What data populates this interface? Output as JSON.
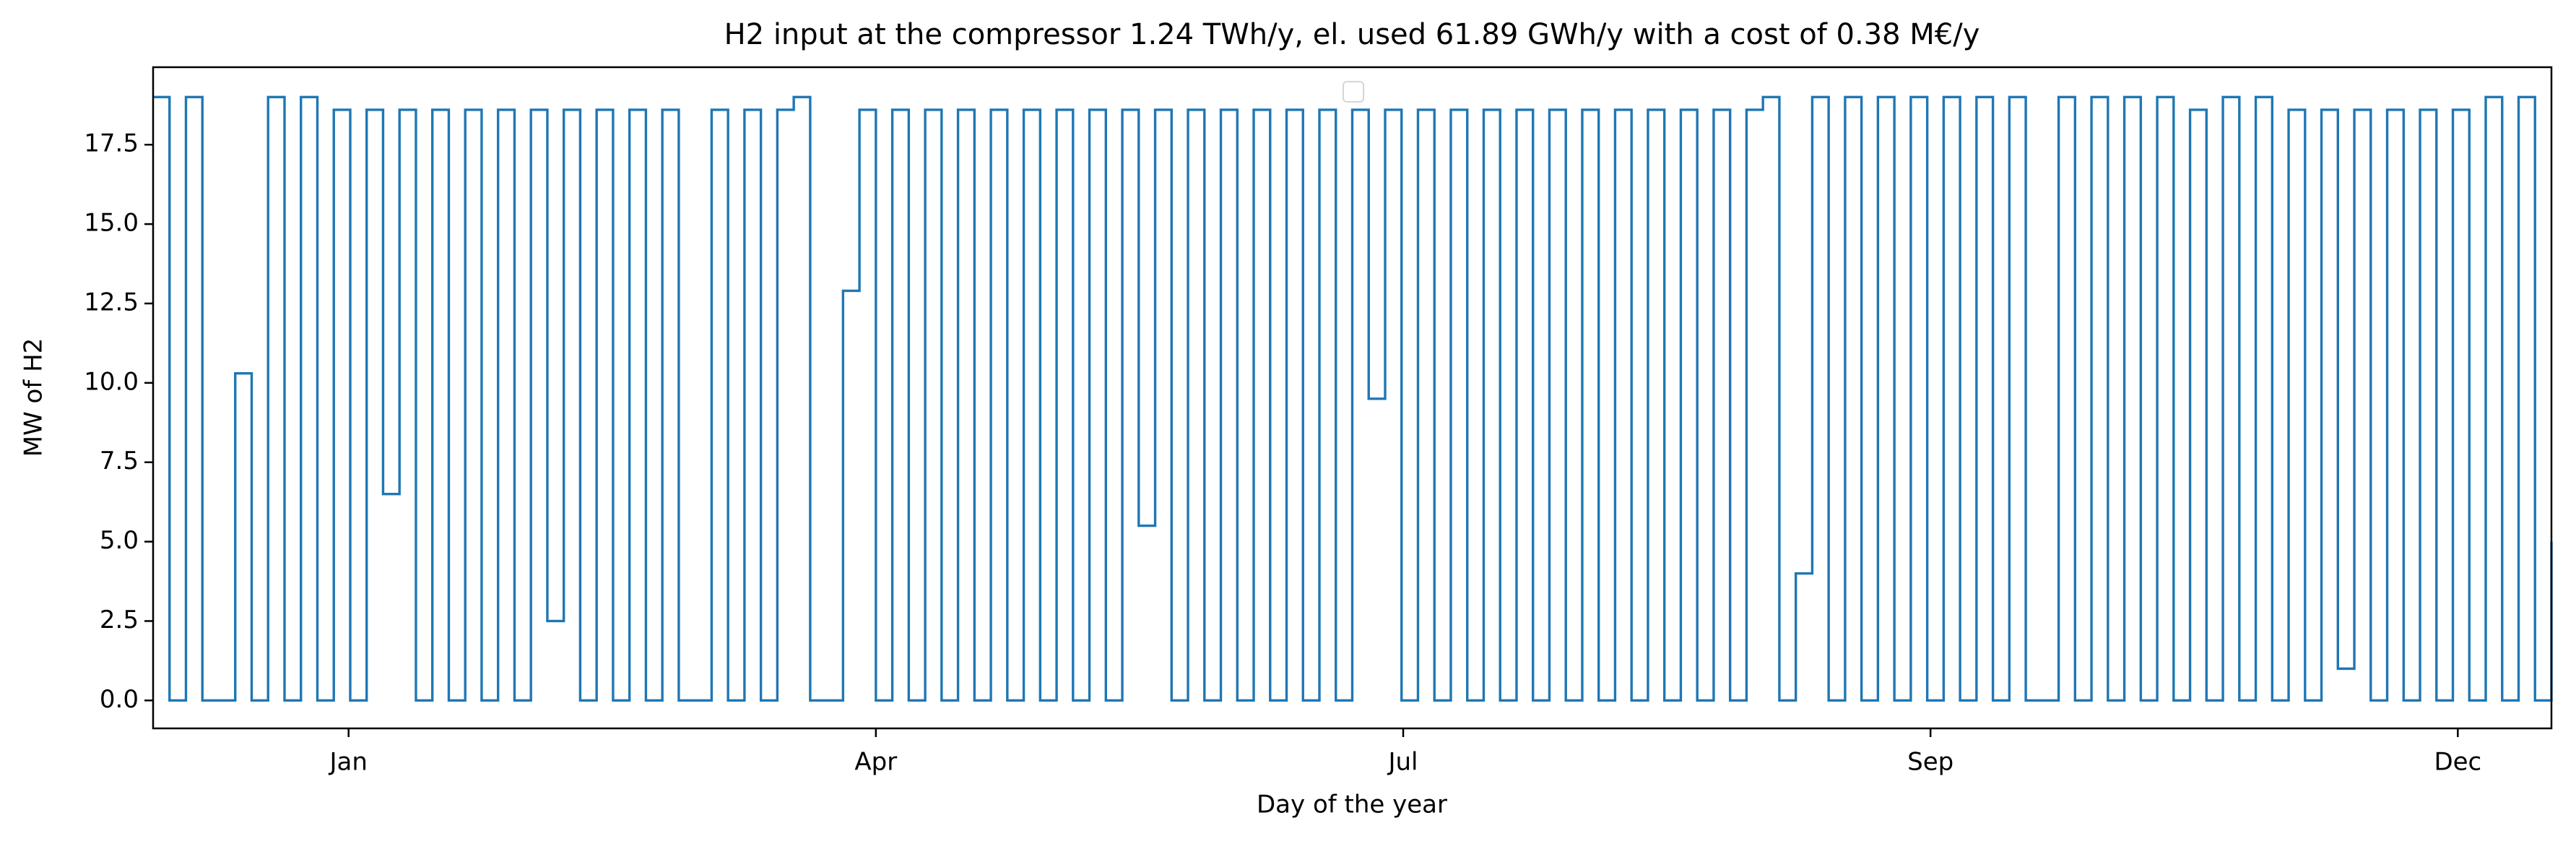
{
  "chart_data": {
    "type": "line",
    "title": "H2 input at the compressor 1.24 TWh/y, el. used 61.89 GWh/y with a cost of 0.38 M€/y",
    "xlabel": "Day of the year",
    "ylabel": "MW of H2",
    "xlim": [
      0,
      8760
    ],
    "xticks": [
      {
        "value": 714,
        "label": "Jan"
      },
      {
        "value": 2640,
        "label": "Apr"
      },
      {
        "value": 4566,
        "label": "Jul"
      },
      {
        "value": 6492,
        "label": "Sep"
      },
      {
        "value": 8418,
        "label": "Dec"
      }
    ],
    "ylim": [
      -0.88,
      19.94
    ],
    "yticks": [
      {
        "value": 0,
        "label": "0.0"
      },
      {
        "value": 2.5,
        "label": "2.5"
      },
      {
        "value": 5,
        "label": "5.0"
      },
      {
        "value": 7.5,
        "label": "7.5"
      },
      {
        "value": 10,
        "label": "10.0"
      },
      {
        "value": 12.5,
        "label": "12.5"
      },
      {
        "value": 15,
        "label": "15.0"
      },
      {
        "value": 17.5,
        "label": "17.5"
      }
    ],
    "x": [
      0,
      60,
      120,
      180,
      240,
      300,
      360,
      420,
      480,
      540,
      600,
      660,
      720,
      780,
      840,
      900,
      960,
      1020,
      1080,
      1140,
      1200,
      1260,
      1320,
      1380,
      1440,
      1500,
      1560,
      1620,
      1680,
      1740,
      1800,
      1860,
      1920,
      1980,
      2040,
      2100,
      2160,
      2220,
      2280,
      2340,
      2400,
      2460,
      2520,
      2580,
      2640,
      2700,
      2760,
      2820,
      2880,
      2940,
      3000,
      3060,
      3120,
      3180,
      3240,
      3300,
      3360,
      3420,
      3480,
      3540,
      3600,
      3660,
      3720,
      3780,
      3840,
      3900,
      3960,
      4020,
      4080,
      4140,
      4200,
      4260,
      4320,
      4380,
      4440,
      4500,
      4560,
      4620,
      4680,
      4740,
      4800,
      4860,
      4920,
      4980,
      5040,
      5100,
      5160,
      5220,
      5280,
      5340,
      5400,
      5460,
      5520,
      5580,
      5640,
      5700,
      5760,
      5820,
      5880,
      5940,
      6000,
      6060,
      6120,
      6180,
      6240,
      6300,
      6360,
      6420,
      6480,
      6540,
      6600,
      6660,
      6720,
      6780,
      6840,
      6900,
      6960,
      7020,
      7080,
      7140,
      7200,
      7260,
      7320,
      7380,
      7440,
      7500,
      7560,
      7620,
      7680,
      7740,
      7800,
      7860,
      7920,
      7980,
      8040,
      8100,
      8160,
      8220,
      8280,
      8340,
      8400,
      8460,
      8520,
      8580,
      8640,
      8700,
      8760
    ],
    "series": [
      {
        "color": "#1f77b4",
        "values": [
          19,
          0,
          19,
          0,
          0,
          10.3,
          0,
          19,
          0,
          19,
          0,
          18.6,
          0,
          18.6,
          6.5,
          18.6,
          0,
          18.6,
          0,
          18.6,
          0,
          18.6,
          0,
          18.6,
          2.5,
          18.6,
          0,
          18.6,
          0,
          18.6,
          0,
          18.6,
          0,
          0,
          18.6,
          0,
          18.6,
          0,
          18.6,
          19,
          0,
          0,
          12.9,
          18.6,
          0,
          18.6,
          0,
          18.6,
          0,
          18.6,
          0,
          18.6,
          0,
          18.6,
          0,
          18.6,
          0,
          18.6,
          0,
          18.6,
          5.5,
          18.6,
          0,
          18.6,
          0,
          18.6,
          0,
          18.6,
          0,
          18.6,
          0,
          18.6,
          0,
          18.6,
          9.5,
          18.6,
          0,
          18.6,
          0,
          18.6,
          0,
          18.6,
          0,
          18.6,
          0,
          18.6,
          0,
          18.6,
          0,
          18.6,
          0,
          18.6,
          0,
          18.6,
          0,
          18.6,
          0,
          18.6,
          19,
          0,
          4,
          19,
          0,
          19,
          0,
          19,
          0,
          19,
          0,
          19,
          0,
          19,
          0,
          19,
          0,
          0,
          19,
          0,
          19,
          0,
          19,
          0,
          19,
          0,
          18.6,
          0,
          19,
          0,
          19,
          0,
          18.6,
          0,
          18.6,
          1,
          18.6,
          0,
          18.6,
          0,
          18.6,
          0,
          18.6,
          0,
          19,
          0,
          19,
          0,
          5
        ]
      }
    ]
  }
}
